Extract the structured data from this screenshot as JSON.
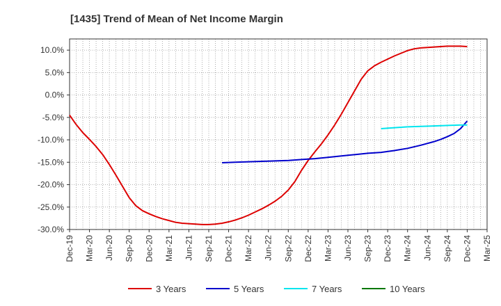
{
  "chart_data": {
    "type": "line",
    "title": "[1435]  Trend of Mean of Net Income Margin",
    "xlabel": "",
    "ylabel": "",
    "ylim": [
      -30,
      12.5
    ],
    "grid": true,
    "legend_position": "bottom",
    "y_ticks": [
      10,
      5,
      0,
      -5,
      -10,
      -15,
      -20,
      -25,
      -30
    ],
    "y_tick_labels": [
      "10.0%",
      "5.0%",
      "0.0%",
      "-5.0%",
      "-10.0%",
      "-15.0%",
      "-20.0%",
      "-25.0%",
      "-30.0%"
    ],
    "x_ticks": [
      "Dec-19",
      "Mar-20",
      "Jun-20",
      "Sep-20",
      "Dec-20",
      "Mar-21",
      "Jun-21",
      "Sep-21",
      "Dec-21",
      "Mar-22",
      "Jun-22",
      "Sep-22",
      "Dec-22",
      "Mar-23",
      "Jun-23",
      "Sep-23",
      "Dec-23",
      "Mar-24",
      "Jun-24",
      "Sep-24",
      "Dec-24",
      "Mar-25"
    ],
    "series": [
      {
        "name": "3 Years",
        "color": "#dd0000",
        "points": [
          [
            "Dec-19",
            -4.5
          ],
          [
            "Jan-20",
            -6.6
          ],
          [
            "Feb-20",
            -8.4
          ],
          [
            "Mar-20",
            -9.9
          ],
          [
            "Apr-20",
            -11.5
          ],
          [
            "May-20",
            -13.3
          ],
          [
            "Jun-20",
            -15.5
          ],
          [
            "Jul-20",
            -17.9
          ],
          [
            "Aug-20",
            -20.4
          ],
          [
            "Sep-20",
            -22.9
          ],
          [
            "Oct-20",
            -24.7
          ],
          [
            "Nov-20",
            -25.8
          ],
          [
            "Dec-20",
            -26.5
          ],
          [
            "Jan-21",
            -27.1
          ],
          [
            "Feb-21",
            -27.6
          ],
          [
            "Mar-21",
            -28.0
          ],
          [
            "Apr-21",
            -28.4
          ],
          [
            "May-21",
            -28.6
          ],
          [
            "Jun-21",
            -28.7
          ],
          [
            "Jul-21",
            -28.8
          ],
          [
            "Aug-21",
            -28.9
          ],
          [
            "Sep-21",
            -28.9
          ],
          [
            "Oct-21",
            -28.8
          ],
          [
            "Nov-21",
            -28.6
          ],
          [
            "Dec-21",
            -28.3
          ],
          [
            "Jan-22",
            -27.9
          ],
          [
            "Feb-22",
            -27.4
          ],
          [
            "Mar-22",
            -26.8
          ],
          [
            "Apr-22",
            -26.1
          ],
          [
            "May-22",
            -25.4
          ],
          [
            "Jun-22",
            -24.6
          ],
          [
            "Jul-22",
            -23.7
          ],
          [
            "Aug-22",
            -22.6
          ],
          [
            "Sep-22",
            -21.2
          ],
          [
            "Oct-22",
            -19.3
          ],
          [
            "Nov-22",
            -16.8
          ],
          [
            "Dec-22",
            -14.6
          ],
          [
            "Jan-23",
            -12.7
          ],
          [
            "Feb-23",
            -10.9
          ],
          [
            "Mar-23",
            -8.9
          ],
          [
            "Apr-23",
            -6.7
          ],
          [
            "May-23",
            -4.3
          ],
          [
            "Jun-23",
            -1.7
          ],
          [
            "Jul-23",
            0.9
          ],
          [
            "Aug-23",
            3.5
          ],
          [
            "Sep-23",
            5.4
          ],
          [
            "Oct-23",
            6.5
          ],
          [
            "Nov-23",
            7.3
          ],
          [
            "Dec-23",
            8.0
          ],
          [
            "Jan-24",
            8.7
          ],
          [
            "Feb-24",
            9.3
          ],
          [
            "Mar-24",
            9.9
          ],
          [
            "Apr-24",
            10.3
          ],
          [
            "May-24",
            10.5
          ],
          [
            "Jun-24",
            10.6
          ],
          [
            "Jul-24",
            10.7
          ],
          [
            "Aug-24",
            10.8
          ],
          [
            "Sep-24",
            10.9
          ],
          [
            "Oct-24",
            10.9
          ],
          [
            "Nov-24",
            10.9
          ],
          [
            "Dec-24",
            10.8
          ]
        ]
      },
      {
        "name": "5 Years",
        "color": "#0000cc",
        "points": [
          [
            "Nov-21",
            -15.1
          ],
          [
            "Jan-22",
            -15.0
          ],
          [
            "Mar-22",
            -14.9
          ],
          [
            "May-22",
            -14.8
          ],
          [
            "Jul-22",
            -14.7
          ],
          [
            "Sep-22",
            -14.6
          ],
          [
            "Nov-22",
            -14.4
          ],
          [
            "Jan-23",
            -14.2
          ],
          [
            "Mar-23",
            -13.9
          ],
          [
            "May-23",
            -13.6
          ],
          [
            "Jul-23",
            -13.3
          ],
          [
            "Sep-23",
            -13.0
          ],
          [
            "Nov-23",
            -12.8
          ],
          [
            "Jan-24",
            -12.4
          ],
          [
            "Mar-24",
            -11.9
          ],
          [
            "May-24",
            -11.2
          ],
          [
            "Jul-24",
            -10.4
          ],
          [
            "Aug-24",
            -9.9
          ],
          [
            "Sep-24",
            -9.3
          ],
          [
            "Oct-24",
            -8.6
          ],
          [
            "Nov-24",
            -7.5
          ],
          [
            "Dec-24",
            -5.8
          ]
        ]
      },
      {
        "name": "7 Years",
        "color": "#00e5ee",
        "points": [
          [
            "Nov-23",
            -7.5
          ],
          [
            "Jan-24",
            -7.3
          ],
          [
            "Mar-24",
            -7.1
          ],
          [
            "May-24",
            -7.0
          ],
          [
            "Jul-24",
            -6.9
          ],
          [
            "Sep-24",
            -6.8
          ],
          [
            "Nov-24",
            -6.7
          ],
          [
            "Dec-24",
            -6.7
          ]
        ]
      },
      {
        "name": "10 Years",
        "color": "#007700",
        "points": []
      }
    ]
  }
}
